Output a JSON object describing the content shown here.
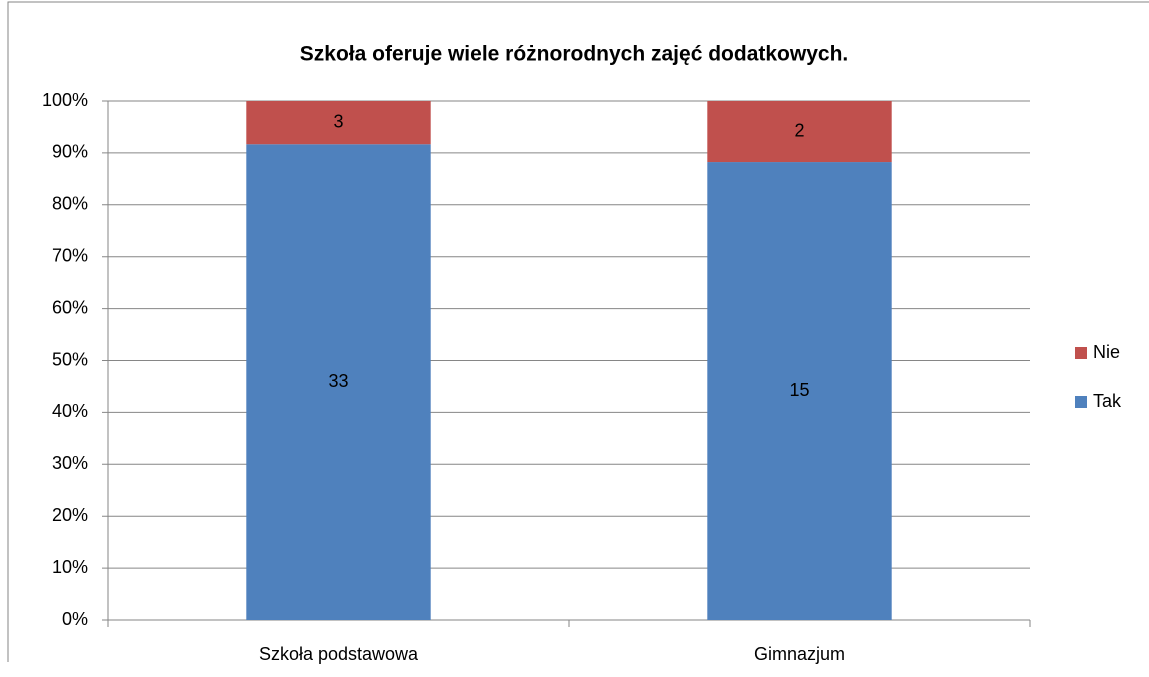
{
  "chart_data": {
    "type": "bar",
    "stacked": "percent",
    "title": "Szkoła oferuje wiele różnorodnych zajęć dodatkowych.",
    "categories": [
      "Szkoła podstawowa",
      "Gimnazjum"
    ],
    "series": [
      {
        "name": "Tak",
        "color": "#4f81bd",
        "values": [
          33,
          15
        ]
      },
      {
        "name": "Nie",
        "color": "#c0504d",
        "values": [
          3,
          2
        ]
      }
    ],
    "ylim": [
      0,
      100
    ],
    "yticks": [
      {
        "value": 0,
        "label": "0%"
      },
      {
        "value": 10,
        "label": "10%"
      },
      {
        "value": 20,
        "label": "20%"
      },
      {
        "value": 30,
        "label": "30%"
      },
      {
        "value": 40,
        "label": "40%"
      },
      {
        "value": 50,
        "label": "50%"
      },
      {
        "value": 60,
        "label": "60%"
      },
      {
        "value": 70,
        "label": "70%"
      },
      {
        "value": 80,
        "label": "80%"
      },
      {
        "value": 90,
        "label": "90%"
      },
      {
        "value": 100,
        "label": "100%"
      }
    ],
    "grid": true,
    "legend": "right"
  }
}
